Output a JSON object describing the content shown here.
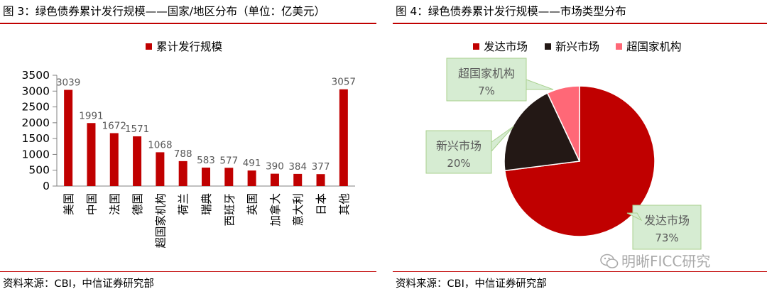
{
  "left": {
    "title": "图 3：绿色债券累计发行规模——国家/地区分布（单位：亿美元）",
    "source": "资料来源：CBI，中信证券研究部"
  },
  "right": {
    "title": "图 4：绿色债券累计发行规模——市场类型分布",
    "source": "资料来源：CBI，中信证券研究部"
  },
  "watermark": "明晰FICC研究",
  "colors": {
    "red": "#c00000",
    "dark": "#231815",
    "pink": "#ff6877",
    "callout_fill": "#d6ecd2",
    "callout_border": "#a9d18e"
  },
  "chart_data": [
    {
      "type": "bar",
      "categories": [
        "美国",
        "中国",
        "法国",
        "德国",
        "超国家机构",
        "荷兰",
        "瑞典",
        "西班牙",
        "英国",
        "加拿大",
        "意大利",
        "日本",
        "其他"
      ],
      "values": [
        3039,
        1991,
        1672,
        1571,
        1068,
        788,
        583,
        577,
        491,
        390,
        384,
        377,
        3057
      ],
      "data_labels": [
        "3039",
        "1991",
        "1672",
        "1571",
        "1068",
        "788",
        "583",
        "577",
        "491",
        "390",
        "384",
        "377",
        "3057"
      ],
      "legend": [
        "累计发行规模"
      ],
      "yticks": [
        "0",
        "500",
        "1000",
        "1500",
        "2000",
        "2500",
        "3000",
        "3500"
      ],
      "ylim": [
        0,
        3500
      ],
      "color": "#c00000"
    },
    {
      "type": "pie",
      "slices": [
        {
          "name": "发达市场",
          "label": "73%",
          "value": 73,
          "color": "#c00000"
        },
        {
          "name": "新兴市场",
          "label": "20%",
          "value": 20,
          "color": "#231815"
        },
        {
          "name": "超国家机构",
          "label": "7%",
          "value": 7,
          "color": "#ff6877"
        }
      ],
      "legend": [
        "发达市场",
        "新兴市场",
        "超国家机构"
      ]
    }
  ]
}
